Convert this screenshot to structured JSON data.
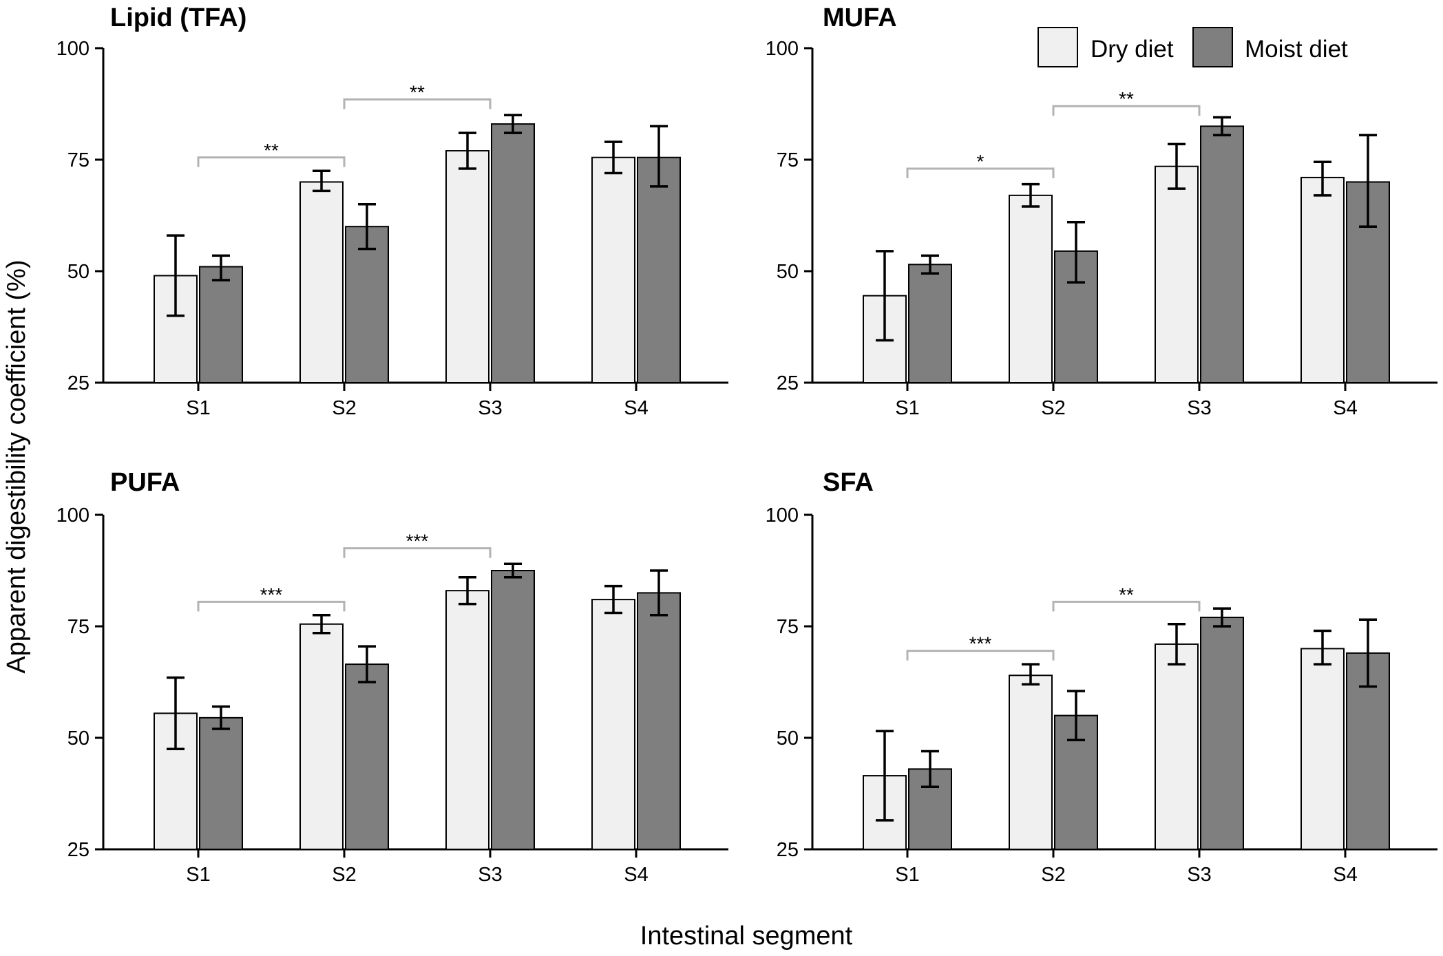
{
  "colors": {
    "dry": "#f0f0f0",
    "moist": "#7f7f7f",
    "bracket": "#b3b3b3"
  },
  "shared": {
    "ylabel": "Apparent digestibility coefficient (%)",
    "xlabel": "Intestinal segment",
    "legend": [
      {
        "name": "Dry diet",
        "color": "#f0f0f0"
      },
      {
        "name": "Moist diet",
        "color": "#7f7f7f"
      }
    ],
    "legend_position": "top-right"
  },
  "chart_data": [
    {
      "type": "bar",
      "title": "Lipid (TFA)",
      "categories": [
        "S1",
        "S2",
        "S3",
        "S4"
      ],
      "ylim": [
        25,
        100
      ],
      "yticks": [
        25,
        50,
        75,
        100
      ],
      "grid": false,
      "series": [
        {
          "name": "Dry diet",
          "values": [
            49,
            70,
            77,
            75.5
          ],
          "err_low": [
            40,
            68,
            73,
            72
          ],
          "err_high": [
            58,
            72.5,
            81,
            79
          ]
        },
        {
          "name": "Moist diet",
          "values": [
            51,
            60,
            83,
            75.5
          ],
          "err_low": [
            48,
            55,
            81,
            69
          ],
          "err_high": [
            53.5,
            65,
            85,
            82.5
          ]
        }
      ],
      "significance": [
        {
          "from": "S1",
          "to": "S2",
          "label": "**",
          "level": 75.5
        },
        {
          "from": "S2",
          "to": "S3",
          "label": "**",
          "level": 88.5
        }
      ]
    },
    {
      "type": "bar",
      "title": "MUFA",
      "categories": [
        "S1",
        "S2",
        "S3",
        "S4"
      ],
      "ylim": [
        25,
        100
      ],
      "yticks": [
        25,
        50,
        75,
        100
      ],
      "grid": false,
      "series": [
        {
          "name": "Dry diet",
          "values": [
            44.5,
            67,
            73.5,
            71
          ],
          "err_low": [
            34.5,
            64.5,
            68.5,
            67
          ],
          "err_high": [
            54.5,
            69.5,
            78.5,
            74.5
          ]
        },
        {
          "name": "Moist diet",
          "values": [
            51.5,
            54.5,
            82.5,
            70
          ],
          "err_low": [
            49.5,
            47.5,
            80.5,
            60
          ],
          "err_high": [
            53.5,
            61,
            84.5,
            80.5
          ]
        }
      ],
      "significance": [
        {
          "from": "S1",
          "to": "S2",
          "label": "*",
          "level": 73
        },
        {
          "from": "S2",
          "to": "S3",
          "label": "**",
          "level": 87
        }
      ]
    },
    {
      "type": "bar",
      "title": "PUFA",
      "categories": [
        "S1",
        "S2",
        "S3",
        "S4"
      ],
      "ylim": [
        25,
        100
      ],
      "yticks": [
        25,
        50,
        75,
        100
      ],
      "grid": false,
      "series": [
        {
          "name": "Dry diet",
          "values": [
            55.5,
            75.5,
            83,
            81
          ],
          "err_low": [
            47.5,
            73.5,
            80,
            78
          ],
          "err_high": [
            63.5,
            77.5,
            86,
            84
          ]
        },
        {
          "name": "Moist diet",
          "values": [
            54.5,
            66.5,
            87.5,
            82.5
          ],
          "err_low": [
            52,
            62.5,
            86,
            77.5
          ],
          "err_high": [
            57,
            70.5,
            89,
            87.5
          ]
        }
      ],
      "significance": [
        {
          "from": "S1",
          "to": "S2",
          "label": "***",
          "level": 80.5
        },
        {
          "from": "S2",
          "to": "S3",
          "label": "***",
          "level": 92.5
        }
      ]
    },
    {
      "type": "bar",
      "title": "SFA",
      "categories": [
        "S1",
        "S2",
        "S3",
        "S4"
      ],
      "ylim": [
        25,
        100
      ],
      "yticks": [
        25,
        50,
        75,
        100
      ],
      "grid": false,
      "series": [
        {
          "name": "Dry diet",
          "values": [
            41.5,
            64,
            71,
            70
          ],
          "err_low": [
            31.5,
            62,
            66.5,
            66.5
          ],
          "err_high": [
            51.5,
            66.5,
            75.5,
            74
          ]
        },
        {
          "name": "Moist diet",
          "values": [
            43,
            55,
            77,
            69
          ],
          "err_low": [
            39,
            49.5,
            75,
            61.5
          ],
          "err_high": [
            47,
            60.5,
            79,
            76.5
          ]
        }
      ],
      "significance": [
        {
          "from": "S1",
          "to": "S2",
          "label": "***",
          "level": 69.5
        },
        {
          "from": "S2",
          "to": "S3",
          "label": "**",
          "level": 80.5
        }
      ]
    }
  ]
}
